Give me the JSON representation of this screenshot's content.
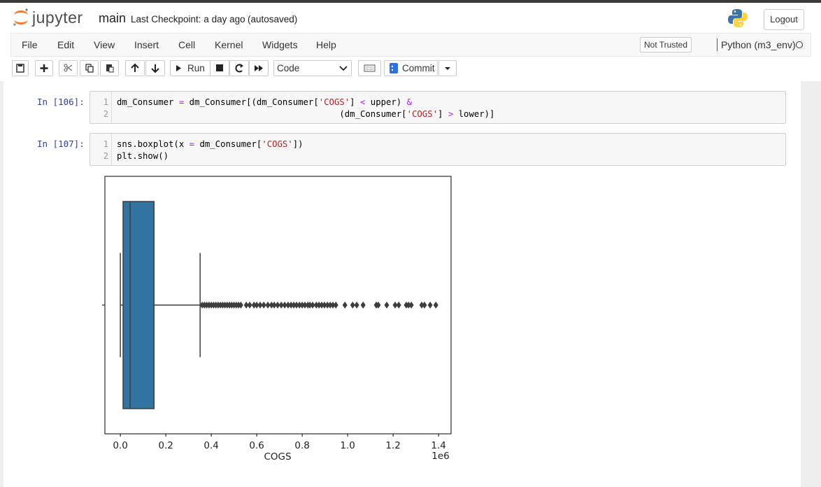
{
  "header": {
    "logo_text": "jupyter",
    "notebook_name": "main",
    "checkpoint": "Last Checkpoint: a day ago",
    "autosave": "(autosaved)",
    "logout": "Logout"
  },
  "menu": [
    "File",
    "Edit",
    "View",
    "Insert",
    "Cell",
    "Kernel",
    "Widgets",
    "Help"
  ],
  "trust": "Not Trusted",
  "kernel": "Python (m3_env)",
  "toolbar": {
    "run": "Run",
    "cell_type": "Code",
    "commit": "Commit"
  },
  "cells": [
    {
      "prompt": "In [106]:",
      "lines": [
        {
          "number": "1",
          "tokens": [
            {
              "text": "dm_Consumer ",
              "color": "#000000"
            },
            {
              "text": "=",
              "color": "#aa22ff"
            },
            {
              "text": " dm_Consumer[(dm_Consumer[",
              "color": "#000000"
            },
            {
              "text": "'COGS'",
              "color": "#ba2121"
            },
            {
              "text": "] ",
              "color": "#000000"
            },
            {
              "text": "<",
              "color": "#aa22ff"
            },
            {
              "text": " upper) ",
              "color": "#000000"
            },
            {
              "text": "&",
              "color": "#aa22ff"
            }
          ]
        },
        {
          "number": "2",
          "tokens": [
            {
              "text": "                                           (dm_Consumer[",
              "color": "#000000"
            },
            {
              "text": "'COGS'",
              "color": "#ba2121"
            },
            {
              "text": "] ",
              "color": "#000000"
            },
            {
              "text": ">",
              "color": "#aa22ff"
            },
            {
              "text": " lower)]",
              "color": "#000000"
            }
          ]
        }
      ]
    },
    {
      "prompt": "In [107]:",
      "lines": [
        {
          "number": "1",
          "tokens": [
            {
              "text": "sns.boxplot(x ",
              "color": "#000000"
            },
            {
              "text": "=",
              "color": "#aa22ff"
            },
            {
              "text": " dm_Consumer[",
              "color": "#000000"
            },
            {
              "text": "'COGS'",
              "color": "#ba2121"
            },
            {
              "text": "])",
              "color": "#000000"
            }
          ]
        },
        {
          "number": "2",
          "tokens": [
            {
              "text": "plt.show()",
              "color": "#000000"
            }
          ]
        }
      ]
    }
  ],
  "chart_data": {
    "type": "box",
    "xlabel": "COGS",
    "offset_text": "1e6",
    "color": "#3274a1",
    "flier_color": "#3d3d3d",
    "xlim": [
      -0.068,
      1.455
    ],
    "xticks": [
      {
        "value": 0,
        "label": "0.0"
      },
      0.2,
      0.4,
      0.6,
      0.8,
      {
        "value": 1,
        "label": "1.0"
      },
      1.2,
      1.4
    ],
    "whislo": 0.0,
    "q1": 0.012,
    "median": 0.043,
    "q3": 0.148,
    "whishi": 0.351,
    "fliers": [
      0.36,
      0.37,
      0.38,
      0.39,
      0.4,
      0.41,
      0.42,
      0.43,
      0.44,
      0.45,
      0.46,
      0.47,
      0.48,
      0.49,
      0.5,
      0.51,
      0.52,
      0.53,
      0.554,
      0.569,
      0.588,
      0.6,
      0.615,
      0.631,
      0.649,
      0.665,
      0.677,
      0.692,
      0.708,
      0.723,
      0.738,
      0.751,
      0.763,
      0.775,
      0.788,
      0.8,
      0.812,
      0.825,
      0.834,
      0.846,
      0.862,
      0.874,
      0.886,
      0.898,
      0.911,
      0.923,
      0.935,
      0.948,
      0.988,
      1.022,
      1.04,
      1.068,
      1.126,
      1.135,
      1.172,
      1.209,
      1.225,
      1.258,
      1.268,
      1.28,
      1.326,
      1.338,
      1.363,
      1.388
    ]
  }
}
